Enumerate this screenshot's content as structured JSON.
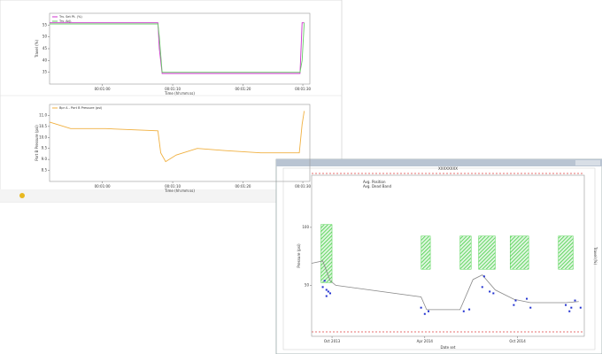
{
  "chart_data": [
    {
      "type": "line",
      "x_label": "Time (hh:mm:ss)",
      "y_label": "Travel (%)",
      "legend": "top-left",
      "grid": false,
      "x": [
        0,
        15.4,
        15.6,
        16,
        35.6,
        35.9,
        36.2
      ],
      "xlim": [
        0,
        37
      ],
      "xticks": [
        {
          "value": 7.5,
          "label": "00:01:00"
        },
        {
          "value": 17.5,
          "label": "00:01:10"
        },
        {
          "value": 27.5,
          "label": "00:01:20"
        },
        {
          "value": 36,
          "label": "00:01:30"
        }
      ],
      "ylim": [
        30,
        60
      ],
      "yticks": [
        35,
        40,
        45,
        50,
        55
      ],
      "series": [
        {
          "name": "Trv. Set Pt. (%)",
          "color": "#cc33cc",
          "values": [
            56,
            56,
            45,
            34.5,
            34.5,
            56,
            56
          ]
        },
        {
          "name": "Trv. Adj.",
          "color": "#66cc66",
          "values": [
            55.5,
            55.5,
            50,
            35,
            35,
            40,
            56
          ]
        }
      ]
    },
    {
      "type": "line",
      "x_label": "Time (hh:mm:ss)",
      "y_label": "Port B Pressure (psi)",
      "legend": "top-left",
      "grid": false,
      "x": [
        0,
        3,
        8,
        15.4,
        15.8,
        16.5,
        18,
        21,
        25,
        30,
        35.5,
        35.9,
        36.2
      ],
      "xlim": [
        0,
        37
      ],
      "xticks": [
        {
          "value": 7.5,
          "label": "00:01:00"
        },
        {
          "value": 17.5,
          "label": "00:01:10"
        },
        {
          "value": 27.5,
          "label": "00:01:20"
        },
        {
          "value": 36,
          "label": "00:01:30"
        }
      ],
      "ylim": [
        8,
        11.5
      ],
      "yticks": [
        {
          "value": 8.5,
          "label": "8.5"
        },
        {
          "value": 9,
          "label": "9.0"
        },
        {
          "value": 9.5,
          "label": "9.5"
        },
        {
          "value": 10,
          "label": "10.0"
        },
        {
          "value": 10.5,
          "label": "10.5"
        },
        {
          "value": 11,
          "label": "11.0"
        }
      ],
      "series": [
        {
          "name": "Bpr A - Port B Pressure (psi)",
          "color": "#f0b040",
          "values": [
            10.7,
            10.4,
            10.4,
            10.3,
            9.3,
            8.9,
            9.2,
            9.5,
            9.4,
            9.3,
            9.3,
            10.6,
            11.2
          ]
        }
      ]
    },
    {
      "type": "scatter",
      "title": "XXXXXXXX",
      "x_label": "Date set",
      "y_label": "Pressure (psi)",
      "y2_label": "Travel (%)",
      "info": [
        "Avg. Position",
        "Avg. Dead Band"
      ],
      "xlim": [
        2013.64,
        2015.11
      ],
      "xticks": [
        {
          "value": 2013.75,
          "label": "Oct 2013"
        },
        {
          "value": 2014.25,
          "label": "Apr 2014"
        },
        {
          "value": 2014.75,
          "label": "Oct 2014"
        }
      ],
      "ylim": [
        6,
        145
      ],
      "yticks": [
        50,
        100
      ],
      "bands": {
        "color": "#33cc33",
        "start": [
          2013.69,
          2014.23,
          2014.44,
          2014.54,
          2014.71,
          2014.97
        ],
        "end": [
          2013.75,
          2014.28,
          2014.5,
          2014.63,
          2014.81,
          2015.05
        ],
        "low": [
          52.3,
          63.9,
          63.9,
          63.9,
          63.9,
          63.9
        ],
        "high": [
          102.5,
          92.5,
          92.5,
          92.5,
          92.5,
          92.5
        ]
      },
      "series": [
        {
          "style": "line",
          "color": "#888888",
          "x": [
            2013.64,
            2013.7,
            2013.74,
            2013.77,
            2014.23,
            2014.26,
            2014.44,
            2014.51,
            2014.56,
            2014.63,
            2014.73,
            2014.82,
            2015.01,
            2015.08
          ],
          "values": [
            69,
            71,
            54,
            50,
            40,
            29,
            29,
            55,
            59,
            46,
            38,
            35,
            35,
            36
          ]
        },
        {
          "style": "points",
          "color": "#1f2fd0",
          "x": [
            2013.7,
            2013.72,
            2013.73,
            2013.74,
            2013.71,
            2013.72,
            2014.23,
            2014.25,
            2014.27,
            2014.46,
            2014.49,
            2014.56,
            2014.57,
            2014.6,
            2014.62,
            2014.73,
            2014.74,
            2014.8,
            2014.82,
            2015.01,
            2015.03,
            2015.04,
            2015.06,
            2015.09
          ],
          "values": [
            48.5,
            46.1,
            44.6,
            43.1,
            53.9,
            40.7,
            30.7,
            25.3,
            27.6,
            27.6,
            29.2,
            48.5,
            57.7,
            44.6,
            43.1,
            33,
            36.9,
            38.4,
            30.7,
            33,
            27.6,
            30.7,
            36.9,
            30.7
          ]
        }
      ]
    }
  ]
}
